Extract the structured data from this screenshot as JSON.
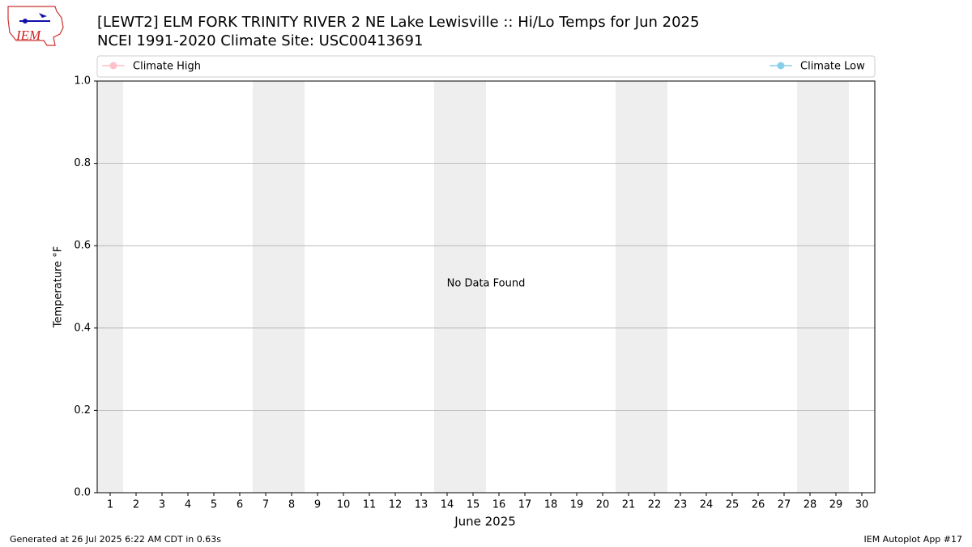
{
  "chart_data": {
    "type": "line",
    "title": "[LEWT2] ELM FORK TRINITY RIVER 2 NE Lake Lewisville :: Hi/Lo Temps for Jun 2025",
    "subtitle": "NCEI 1991-2020 Climate Site: USC00413691",
    "logo_text": "IEM",
    "x_label": "June 2025",
    "y_label": "Temperature °F",
    "annotation": "No Data Found",
    "footer_left": "Generated at 26 Jul 2025 6:22 AM CDT in 0.63s",
    "footer_right": "IEM Autoplot App #17",
    "x": [
      1,
      2,
      3,
      4,
      5,
      6,
      7,
      8,
      9,
      10,
      11,
      12,
      13,
      14,
      15,
      16,
      17,
      18,
      19,
      20,
      21,
      22,
      23,
      24,
      25,
      26,
      27,
      28,
      29,
      30
    ],
    "series": [
      {
        "name": "Climate High",
        "color": "#ffc0cb",
        "values": [
          null,
          null,
          null,
          null,
          null,
          null,
          null,
          null,
          null,
          null,
          null,
          null,
          null,
          null,
          null,
          null,
          null,
          null,
          null,
          null,
          null,
          null,
          null,
          null,
          null,
          null,
          null,
          null,
          null,
          null
        ]
      },
      {
        "name": "Climate Low",
        "color": "#87ceeb",
        "values": [
          null,
          null,
          null,
          null,
          null,
          null,
          null,
          null,
          null,
          null,
          null,
          null,
          null,
          null,
          null,
          null,
          null,
          null,
          null,
          null,
          null,
          null,
          null,
          null,
          null,
          null,
          null,
          null,
          null,
          null
        ]
      }
    ],
    "shaded_days": [
      1,
      7,
      8,
      14,
      15,
      21,
      22,
      28,
      29
    ],
    "xlim": [
      0.5,
      30.5
    ],
    "xticks": [
      1,
      2,
      3,
      4,
      5,
      6,
      7,
      8,
      9,
      10,
      11,
      12,
      13,
      14,
      15,
      16,
      17,
      18,
      19,
      20,
      21,
      22,
      23,
      24,
      25,
      26,
      27,
      28,
      29,
      30
    ],
    "ylim": [
      0,
      1
    ],
    "yticks": [
      {
        "value": 0,
        "label": "0.0"
      },
      0.2,
      0.4,
      0.6,
      0.8,
      {
        "value": 1,
        "label": "1.0"
      }
    ],
    "grid": true
  }
}
